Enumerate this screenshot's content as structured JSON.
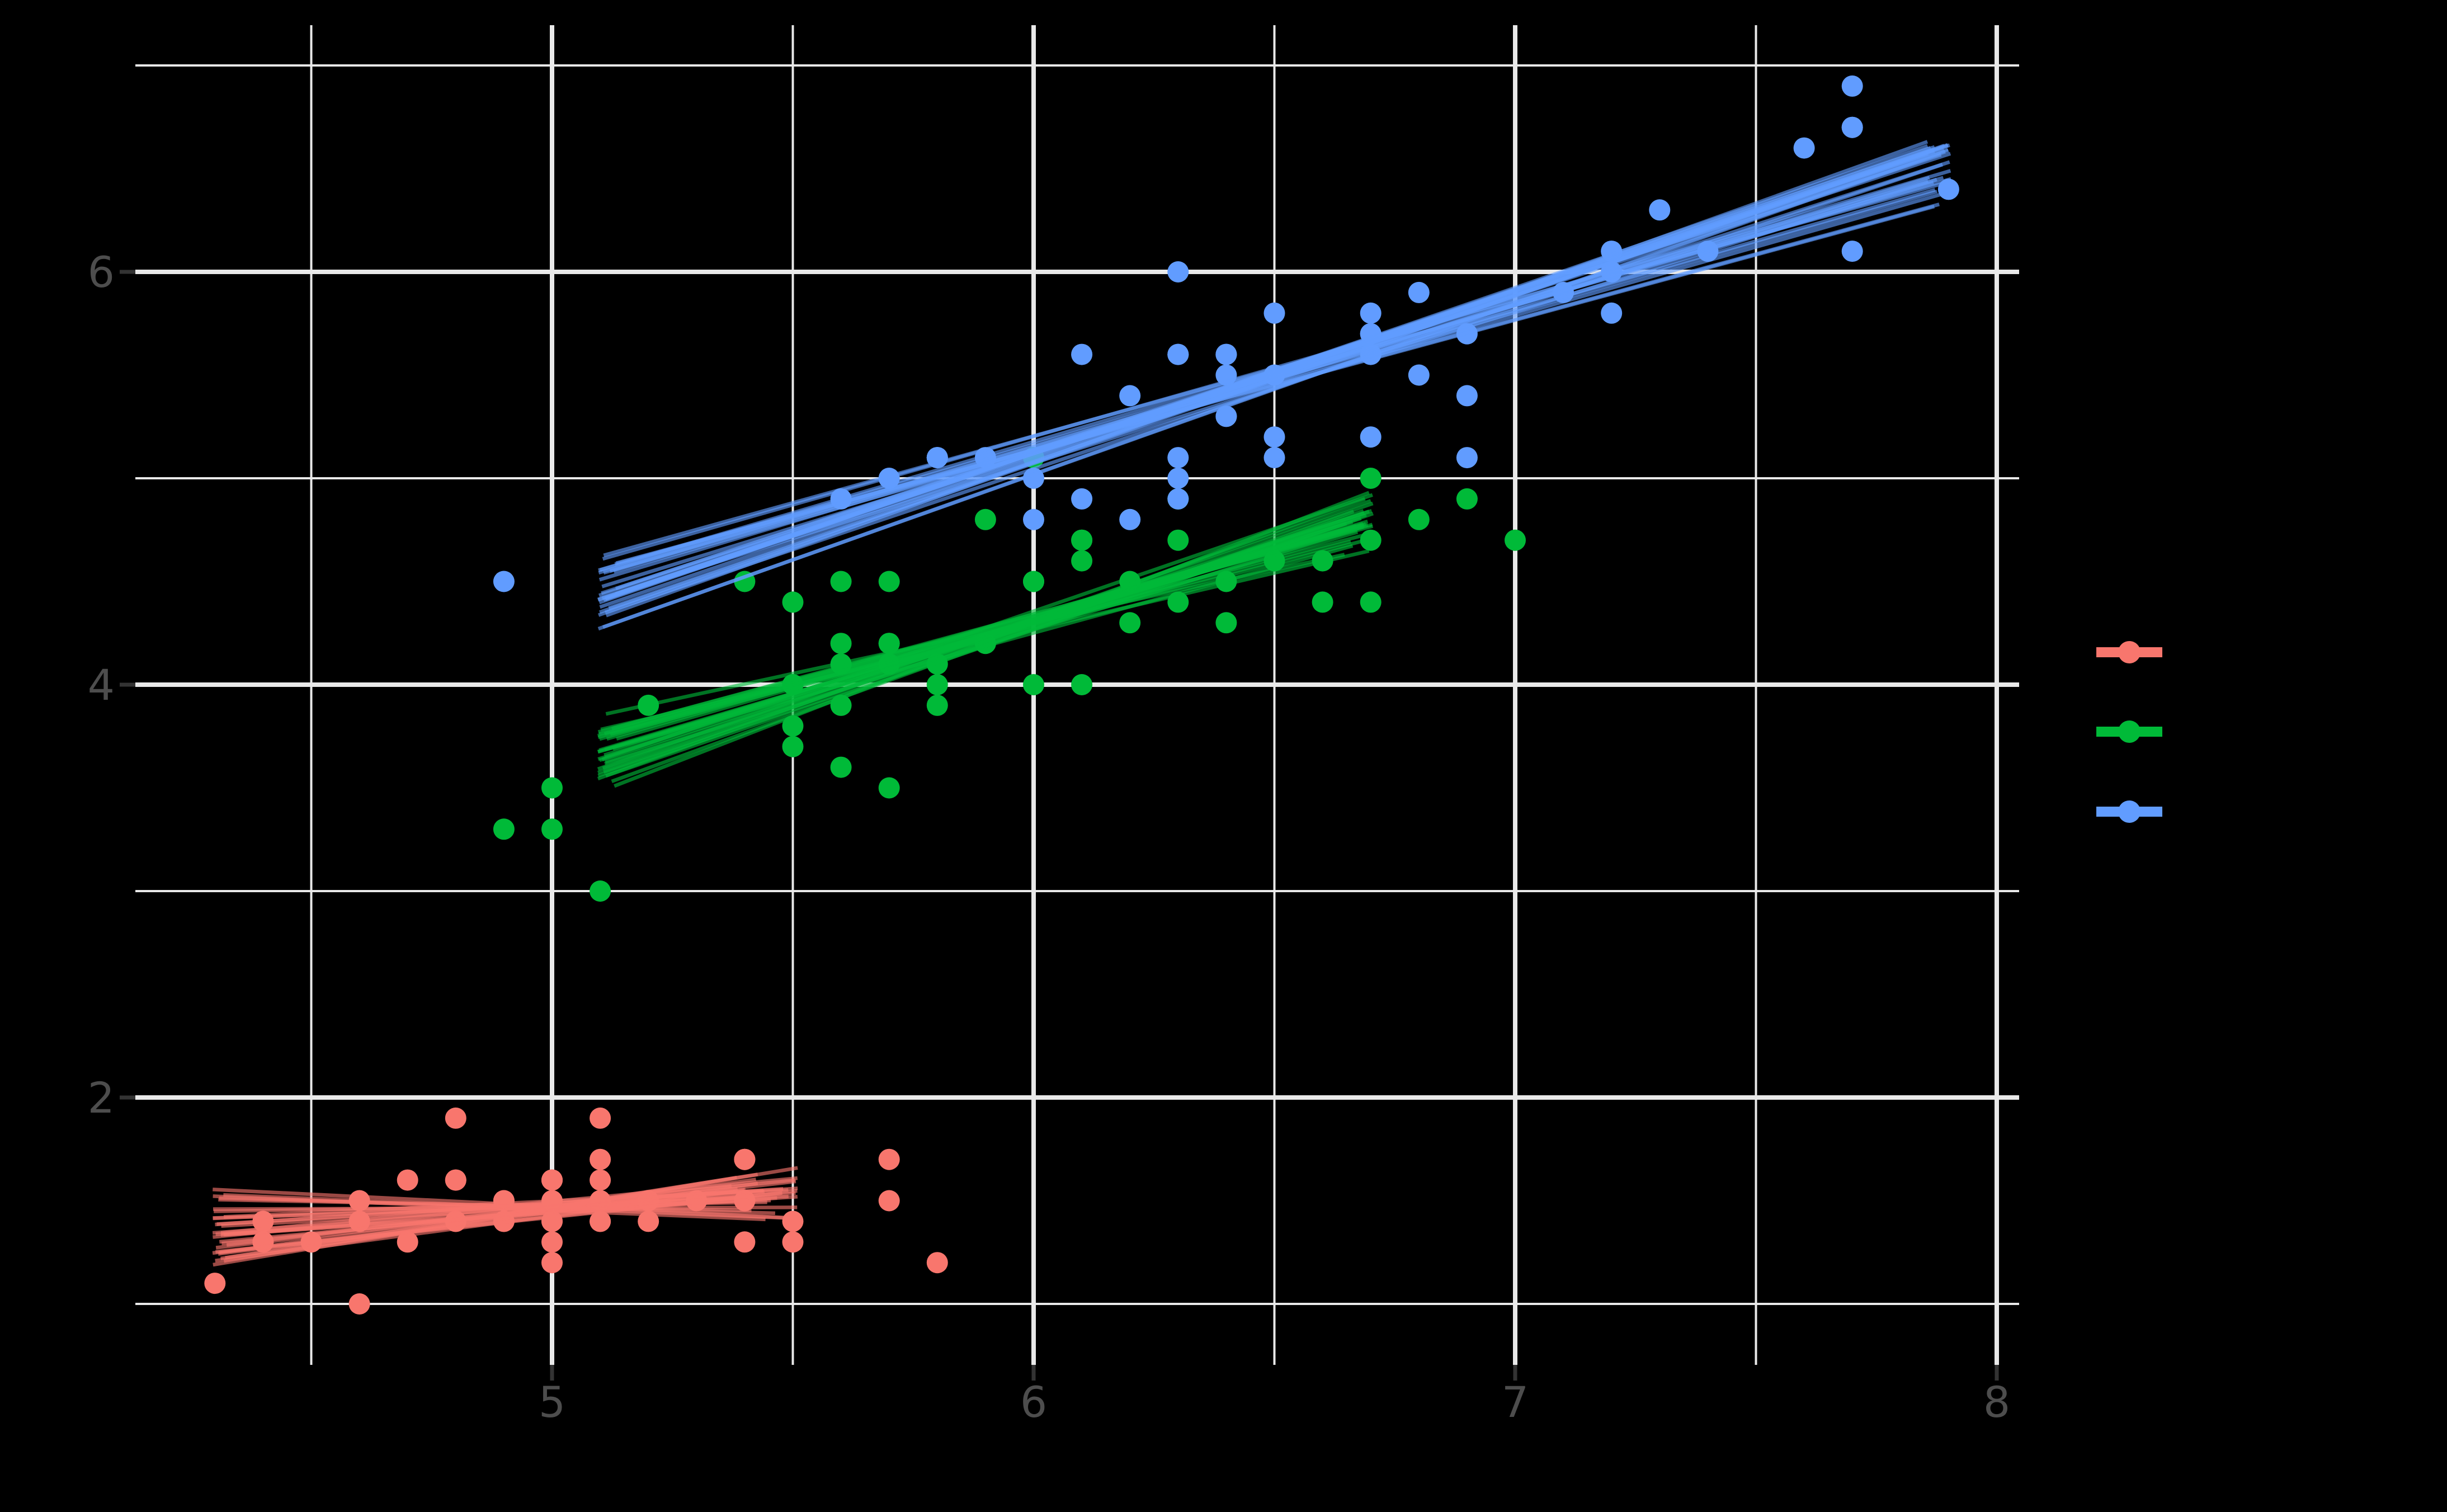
{
  "figure": {
    "background": "#000000",
    "description": "Scatter plot with bundles of bootstrap linear-fit lines for three color groups; legend keys visible on right; legend/title text not visible (black on black)."
  },
  "colors": {
    "group_red": "#F8766D",
    "group_green": "#00BA38",
    "group_blue": "#619CFF",
    "grid": "#E9E9E9",
    "tick_label": "#4D4D4D",
    "tick_mark": "#333333",
    "background": "#000000"
  },
  "legend": {
    "position": "right",
    "items": [
      {
        "id": "group_red",
        "color": "#F8766D"
      },
      {
        "id": "group_green",
        "color": "#00BA38"
      },
      {
        "id": "group_blue",
        "color": "#619CFF"
      }
    ]
  },
  "chart_data": {
    "type": "scatter",
    "title": "",
    "xlabel": "",
    "ylabel": "",
    "grid": "on",
    "legend_position": "right",
    "axes": {
      "x": {
        "range": [
          4.13,
          8.05
        ],
        "major_ticks": [
          5,
          6,
          7,
          8
        ],
        "tick_labels": [
          "5",
          "6",
          "7",
          "8"
        ],
        "minor_ticks": [
          4.5,
          5.5,
          6.5,
          7.5
        ]
      },
      "y": {
        "range": [
          0.705,
          7.195
        ],
        "major_ticks": [
          2,
          4,
          6
        ],
        "tick_labels": [
          "2",
          "4",
          "6"
        ],
        "minor_ticks": [
          1,
          3,
          5,
          7
        ]
      }
    },
    "series": [
      {
        "id": "group_red",
        "color": "#F8766D",
        "points": [
          [
            5.1,
            1.4
          ],
          [
            4.9,
            1.4
          ],
          [
            4.7,
            1.3
          ],
          [
            4.6,
            1.5
          ],
          [
            5.0,
            1.4
          ],
          [
            5.4,
            1.7
          ],
          [
            4.6,
            1.4
          ],
          [
            5.0,
            1.5
          ],
          [
            4.4,
            1.4
          ],
          [
            4.9,
            1.5
          ],
          [
            5.4,
            1.5
          ],
          [
            4.8,
            1.6
          ],
          [
            4.8,
            1.4
          ],
          [
            4.3,
            1.1
          ],
          [
            5.8,
            1.2
          ],
          [
            5.7,
            1.5
          ],
          [
            5.4,
            1.3
          ],
          [
            5.1,
            1.4
          ],
          [
            5.7,
            1.7
          ],
          [
            5.1,
            1.5
          ],
          [
            5.4,
            1.7
          ],
          [
            5.1,
            1.5
          ],
          [
            4.6,
            1.0
          ],
          [
            5.1,
            1.7
          ],
          [
            4.8,
            1.9
          ],
          [
            5.0,
            1.6
          ],
          [
            5.0,
            1.6
          ],
          [
            5.2,
            1.5
          ],
          [
            5.2,
            1.4
          ],
          [
            4.7,
            1.6
          ],
          [
            4.8,
            1.6
          ],
          [
            5.4,
            1.5
          ],
          [
            5.2,
            1.5
          ],
          [
            5.5,
            1.4
          ],
          [
            4.9,
            1.5
          ],
          [
            5.0,
            1.2
          ],
          [
            5.5,
            1.3
          ],
          [
            4.9,
            1.4
          ],
          [
            4.4,
            1.3
          ],
          [
            5.1,
            1.5
          ],
          [
            5.0,
            1.3
          ],
          [
            4.5,
            1.3
          ],
          [
            4.4,
            1.3
          ],
          [
            5.0,
            1.6
          ],
          [
            5.1,
            1.9
          ],
          [
            4.8,
            1.4
          ],
          [
            5.1,
            1.6
          ],
          [
            4.6,
            1.4
          ],
          [
            5.3,
            1.5
          ],
          [
            5.0,
            1.4
          ]
        ],
        "fit_lines": {
          "pivot_x": 5.0,
          "pivot_y": 1.46,
          "slope": 0.13,
          "slope_jitter": 0.26,
          "y_jitter": 0.04,
          "x_start": 4.295,
          "x_start_jitter": 0.03,
          "x_end": 5.51,
          "x_end_jitter": 0.14,
          "count": 32,
          "seed": 3
        }
      },
      {
        "id": "group_green",
        "color": "#00BA38",
        "points": [
          [
            7.0,
            4.7
          ],
          [
            6.4,
            4.5
          ],
          [
            6.9,
            4.9
          ],
          [
            5.5,
            4.0
          ],
          [
            6.5,
            4.6
          ],
          [
            5.7,
            4.5
          ],
          [
            6.3,
            4.7
          ],
          [
            4.9,
            3.3
          ],
          [
            6.6,
            4.6
          ],
          [
            5.2,
            3.9
          ],
          [
            5.0,
            3.5
          ],
          [
            5.9,
            4.2
          ],
          [
            6.0,
            4.0
          ],
          [
            6.1,
            4.7
          ],
          [
            5.6,
            3.6
          ],
          [
            6.7,
            4.4
          ],
          [
            5.6,
            4.5
          ],
          [
            5.8,
            4.1
          ],
          [
            6.2,
            4.5
          ],
          [
            5.6,
            3.9
          ],
          [
            5.9,
            4.8
          ],
          [
            6.1,
            4.0
          ],
          [
            6.3,
            4.9
          ],
          [
            6.1,
            4.7
          ],
          [
            6.4,
            4.3
          ],
          [
            6.6,
            4.4
          ],
          [
            6.8,
            4.8
          ],
          [
            6.7,
            5.0
          ],
          [
            6.0,
            4.5
          ],
          [
            5.7,
            3.5
          ],
          [
            5.5,
            3.8
          ],
          [
            5.5,
            3.7
          ],
          [
            5.8,
            3.9
          ],
          [
            6.0,
            5.1
          ],
          [
            5.4,
            4.5
          ],
          [
            6.0,
            4.5
          ],
          [
            6.7,
            4.7
          ],
          [
            6.3,
            4.4
          ],
          [
            5.6,
            4.1
          ],
          [
            5.5,
            4.0
          ],
          [
            5.5,
            4.4
          ],
          [
            6.1,
            4.6
          ],
          [
            5.8,
            4.0
          ],
          [
            5.0,
            3.3
          ],
          [
            5.6,
            4.2
          ],
          [
            5.7,
            4.2
          ],
          [
            5.7,
            4.2
          ],
          [
            6.2,
            4.3
          ],
          [
            5.1,
            3.0
          ],
          [
            5.7,
            4.1
          ]
        ],
        "fit_lines": {
          "pivot_x": 5.94,
          "pivot_y": 4.26,
          "slope": 0.69,
          "slope_jitter": 0.23,
          "y_jitter": 0.05,
          "x_start": 5.095,
          "x_start_jitter": 0.04,
          "x_end": 6.705,
          "x_end_jitter": 0.06,
          "count": 32,
          "seed": 11
        }
      },
      {
        "id": "group_blue",
        "color": "#619CFF",
        "points": [
          [
            6.3,
            6.0
          ],
          [
            5.8,
            5.1
          ],
          [
            7.1,
            5.9
          ],
          [
            6.3,
            5.6
          ],
          [
            6.5,
            5.8
          ],
          [
            7.6,
            6.6
          ],
          [
            4.9,
            4.5
          ],
          [
            7.3,
            6.3
          ],
          [
            6.7,
            5.8
          ],
          [
            7.2,
            6.1
          ],
          [
            6.5,
            5.1
          ],
          [
            6.4,
            5.3
          ],
          [
            6.8,
            5.5
          ],
          [
            5.7,
            5.0
          ],
          [
            5.8,
            5.1
          ],
          [
            6.4,
            5.3
          ],
          [
            6.5,
            5.5
          ],
          [
            7.7,
            6.7
          ],
          [
            7.7,
            6.9
          ],
          [
            6.0,
            5.0
          ],
          [
            6.9,
            5.7
          ],
          [
            5.6,
            4.9
          ],
          [
            7.7,
            6.7
          ],
          [
            6.3,
            4.9
          ],
          [
            6.7,
            5.7
          ],
          [
            7.2,
            6.0
          ],
          [
            6.2,
            4.8
          ],
          [
            6.1,
            4.9
          ],
          [
            6.4,
            5.6
          ],
          [
            7.2,
            5.8
          ],
          [
            7.4,
            6.1
          ],
          [
            7.9,
            6.4
          ],
          [
            6.4,
            5.6
          ],
          [
            6.3,
            5.1
          ],
          [
            6.1,
            5.6
          ],
          [
            7.7,
            6.1
          ],
          [
            6.3,
            5.6
          ],
          [
            6.4,
            5.5
          ],
          [
            6.0,
            4.8
          ],
          [
            6.9,
            5.4
          ],
          [
            6.7,
            5.6
          ],
          [
            6.9,
            5.1
          ],
          [
            5.8,
            5.1
          ],
          [
            6.8,
            5.9
          ],
          [
            6.7,
            5.7
          ],
          [
            6.7,
            5.2
          ],
          [
            6.3,
            5.0
          ],
          [
            6.5,
            5.2
          ],
          [
            6.2,
            5.4
          ],
          [
            5.9,
            5.1
          ]
        ],
        "fit_lines": {
          "pivot_x": 6.59,
          "pivot_y": 5.55,
          "slope": 0.75,
          "slope_jitter": 0.12,
          "y_jitter": 0.045,
          "x_start": 5.095,
          "x_start_jitter": 0.04,
          "x_end": 7.905,
          "x_end_jitter": 0.05,
          "count": 32,
          "seed": 7
        }
      }
    ]
  }
}
